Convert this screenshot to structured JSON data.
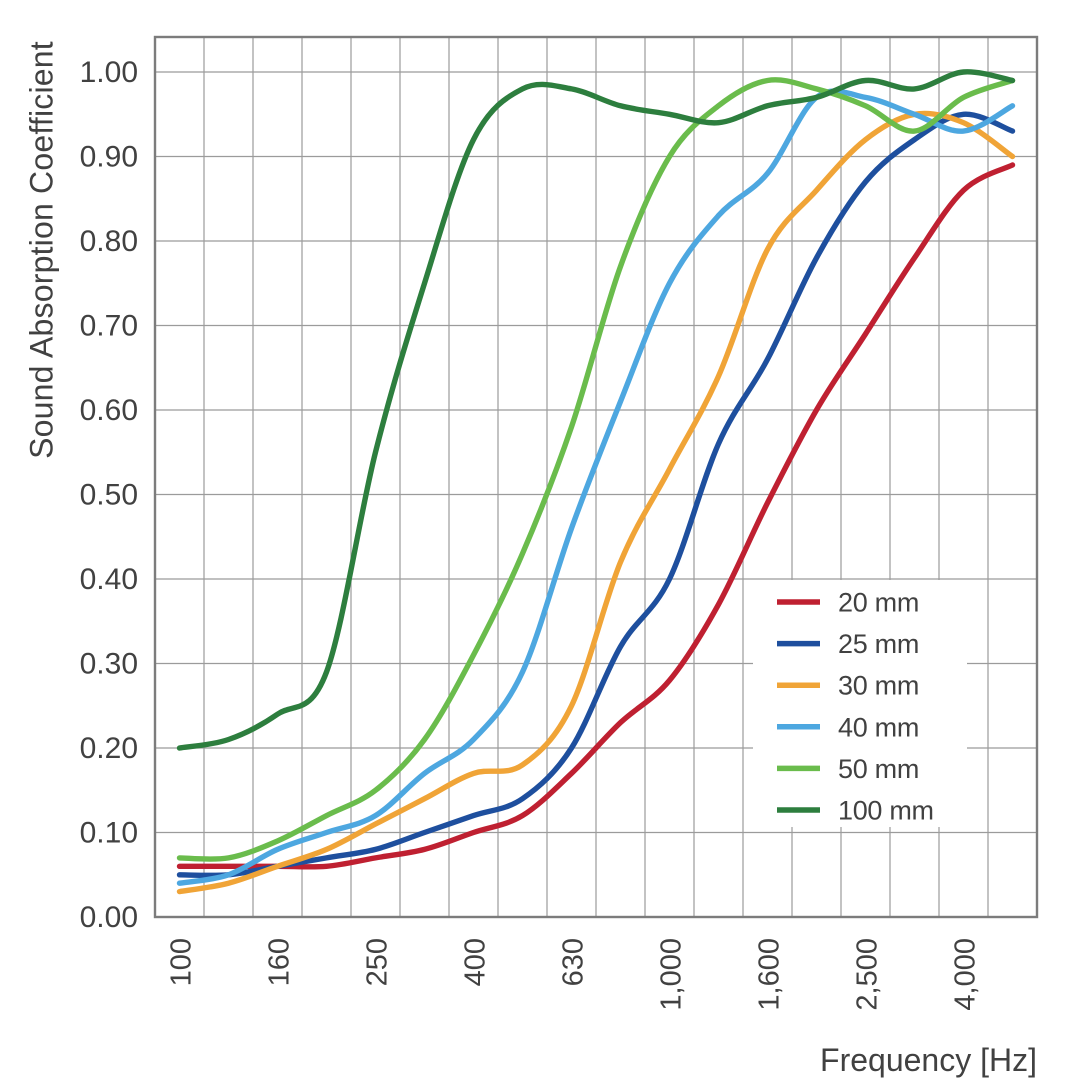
{
  "chart_data": {
    "type": "line",
    "title": "",
    "xlabel": "Frequency [Hz]",
    "ylabel": "Sound Absorption Coefficient",
    "x_scale": "third-octave-bands-categorical",
    "categories": [
      100,
      125,
      160,
      200,
      250,
      315,
      400,
      500,
      630,
      800,
      1000,
      1250,
      1600,
      2000,
      2500,
      3150,
      4000,
      5000
    ],
    "x_tick_labels": [
      "100",
      "160",
      "250",
      "400",
      "630",
      "1,000",
      "1,600",
      "2,500",
      "4,000"
    ],
    "x_tick_band_indices": [
      0,
      2,
      4,
      6,
      8,
      10,
      12,
      14,
      16
    ],
    "y_tick_labels": [
      "0.00",
      "0.10",
      "0.20",
      "0.30",
      "0.40",
      "0.50",
      "0.60",
      "0.70",
      "0.80",
      "0.90",
      "1.00"
    ],
    "y_tick_values": [
      0,
      0.1,
      0.2,
      0.3,
      0.4,
      0.5,
      0.6,
      0.7,
      0.8,
      0.9,
      1.0
    ],
    "ylim": [
      0,
      1.042
    ],
    "grid": true,
    "grid_color": "#9b9b9b",
    "border_color": "#7c7c7c",
    "legend_position": "inside-lower-right",
    "series": [
      {
        "name": "20 mm",
        "color": "#bf2031",
        "values": [
          0.06,
          0.06,
          0.06,
          0.06,
          0.07,
          0.08,
          0.1,
          0.12,
          0.17,
          0.23,
          0.28,
          0.37,
          0.49,
          0.6,
          0.69,
          0.78,
          0.86,
          0.89
        ]
      },
      {
        "name": "25 mm",
        "color": "#1e4f9e",
        "values": [
          0.05,
          0.05,
          0.06,
          0.07,
          0.08,
          0.1,
          0.12,
          0.14,
          0.2,
          0.32,
          0.4,
          0.56,
          0.66,
          0.78,
          0.87,
          0.92,
          0.95,
          0.93
        ]
      },
      {
        "name": "30 mm",
        "color": "#f0a437",
        "values": [
          0.03,
          0.04,
          0.06,
          0.08,
          0.11,
          0.14,
          0.17,
          0.18,
          0.25,
          0.42,
          0.53,
          0.64,
          0.79,
          0.86,
          0.92,
          0.95,
          0.94,
          0.9
        ]
      },
      {
        "name": "40 mm",
        "color": "#4da7e0",
        "values": [
          0.04,
          0.05,
          0.08,
          0.1,
          0.12,
          0.17,
          0.21,
          0.29,
          0.46,
          0.61,
          0.75,
          0.83,
          0.88,
          0.97,
          0.97,
          0.95,
          0.93,
          0.96
        ]
      },
      {
        "name": "50 mm",
        "color": "#6abc4c",
        "values": [
          0.07,
          0.07,
          0.09,
          0.12,
          0.15,
          0.21,
          0.31,
          0.43,
          0.58,
          0.77,
          0.9,
          0.96,
          0.99,
          0.98,
          0.96,
          0.93,
          0.97,
          0.99
        ]
      },
      {
        "name": "100 mm",
        "color": "#2d7e3e",
        "values": [
          0.2,
          0.21,
          0.24,
          0.29,
          0.55,
          0.75,
          0.92,
          0.98,
          0.98,
          0.96,
          0.95,
          0.94,
          0.96,
          0.97,
          0.99,
          0.98,
          1.0,
          0.99
        ]
      }
    ]
  }
}
